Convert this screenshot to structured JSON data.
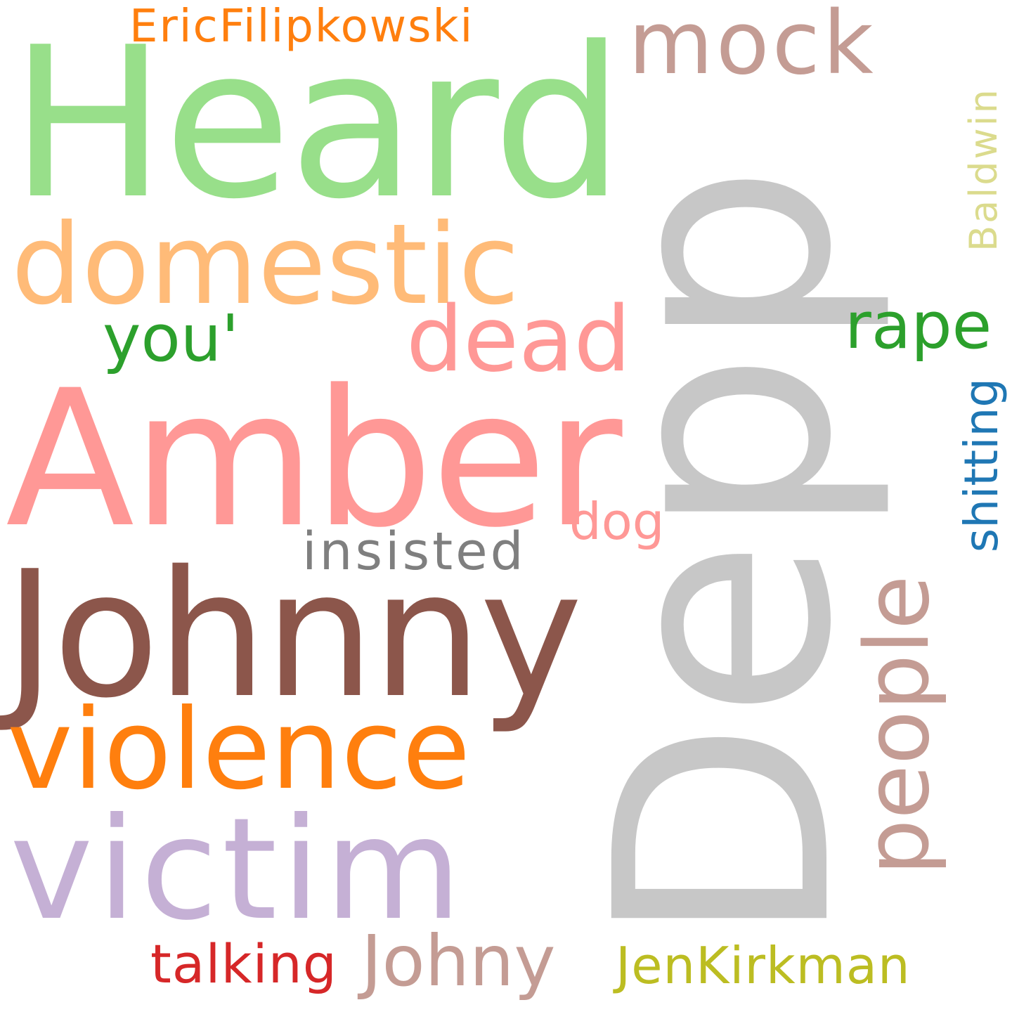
{
  "words": [
    {
      "id": "w-heard",
      "text": "Heard",
      "color": "#98df8a"
    },
    {
      "id": "w-depp",
      "text": "Depp",
      "color": "#c7c7c7"
    },
    {
      "id": "w-amber",
      "text": "Amber",
      "color": "#ff9896"
    },
    {
      "id": "w-johnny",
      "text": "Johnny",
      "color": "#8c564b"
    },
    {
      "id": "w-domestic",
      "text": "domestic",
      "color": "#ffbb78"
    },
    {
      "id": "w-violence",
      "text": "violence",
      "color": "#ff7f0e"
    },
    {
      "id": "w-victim",
      "text": "victim",
      "color": "#c5b0d5"
    },
    {
      "id": "w-mock",
      "text": "mock",
      "color": "#c49c94"
    },
    {
      "id": "w-ericfilipkowski",
      "text": "EricFilipkowski",
      "color": "#ff7f0e"
    },
    {
      "id": "w-dead",
      "text": "dead",
      "color": "#ff9896"
    },
    {
      "id": "w-you",
      "text": "you'",
      "color": "#2ca02c"
    },
    {
      "id": "w-rape",
      "text": "rape",
      "color": "#2ca02c"
    },
    {
      "id": "w-baldwin",
      "text": "Baldwin",
      "color": "#dbdb8d"
    },
    {
      "id": "w-people",
      "text": "people",
      "color": "#c49c94"
    },
    {
      "id": "w-shitting",
      "text": "shitting",
      "color": "#1f77b4"
    },
    {
      "id": "w-dog",
      "text": "dog",
      "color": "#ff9896"
    },
    {
      "id": "w-insisted",
      "text": "insisted",
      "color": "#7f7f7f"
    },
    {
      "id": "w-johny",
      "text": "Johny",
      "color": "#c49c94"
    },
    {
      "id": "w-talking",
      "text": "talking",
      "color": "#d62728"
    },
    {
      "id": "w-jenkirkman",
      "text": "JenKirkman",
      "color": "#bcbd22"
    }
  ]
}
